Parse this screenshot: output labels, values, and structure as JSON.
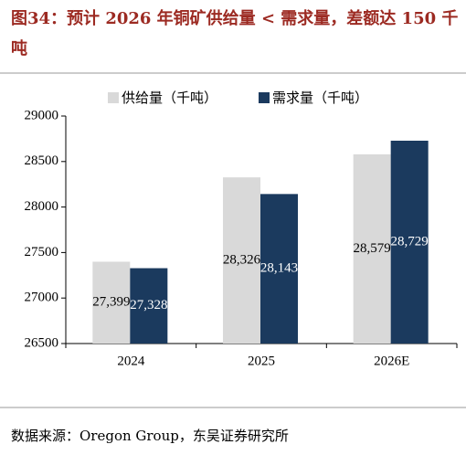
{
  "title": "图34：预计 2026 年铜矿供给量 < 需求量，差额达 150 千吨",
  "source": "数据来源：Oregon Group，东吴证券研究所",
  "chart_data": {
    "type": "bar",
    "categories": [
      "2024",
      "2025",
      "2026E"
    ],
    "series": [
      {
        "name": "供给量（千吨）",
        "color": "#d9d9d9",
        "values": [
          27399,
          28326,
          28579
        ],
        "value_labels": [
          "27,399",
          "28,326",
          "28,579"
        ],
        "label_color": "#000000"
      },
      {
        "name": "需求量（千吨）",
        "color": "#1b3a5e",
        "values": [
          27328,
          28143,
          28729
        ],
        "value_labels": [
          "27,328",
          "28,143",
          "28,729"
        ],
        "label_color": "#ffffff"
      }
    ],
    "ylim": [
      26500,
      29000
    ],
    "yticks": [
      26500,
      27000,
      27500,
      28000,
      28500,
      29000
    ]
  }
}
